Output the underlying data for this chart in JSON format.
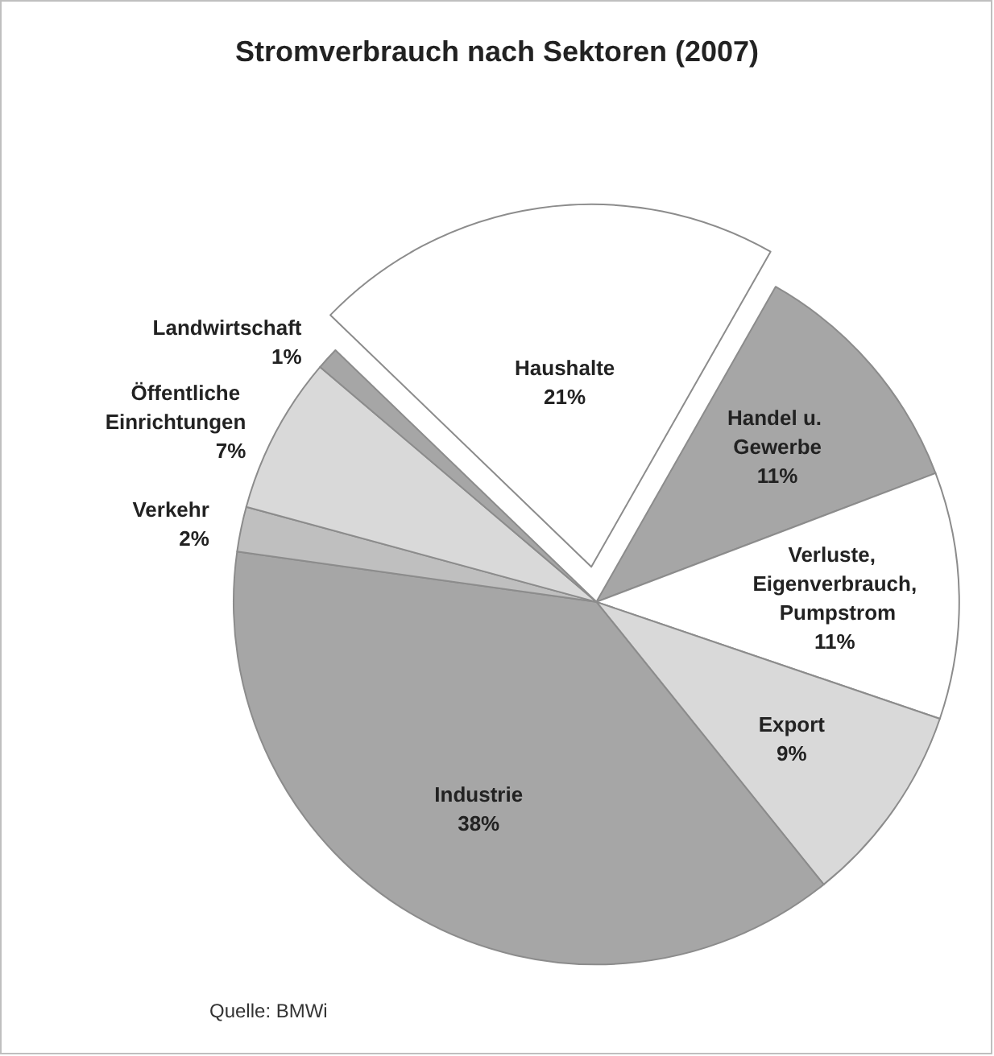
{
  "chart_data": {
    "type": "pie",
    "title": "Stromverbrauch nach Sektoren (2007)",
    "categories": [
      "Haushalte",
      "Handel u. Gewerbe",
      "Verluste, Eigenverbrauch, Pumpstrom",
      "Export",
      "Industrie",
      "Verkehr",
      "Öffentliche Einrichtungen",
      "Landwirtschaft"
    ],
    "values": [
      21,
      11,
      11,
      9,
      38,
      2,
      7,
      1
    ],
    "colors": [
      "#ffffff",
      "#a6a6a6",
      "#ffffff",
      "#d9d9d9",
      "#a6a6a6",
      "#bfbfbf",
      "#d9d9d9",
      "#a6a6a6"
    ],
    "value_labels": [
      "21%",
      "11%",
      "11%",
      "9%",
      "38%",
      "2%",
      "7%",
      "1%"
    ],
    "legend": false,
    "annotations": [
      "Quelle: BMWi"
    ]
  }
}
